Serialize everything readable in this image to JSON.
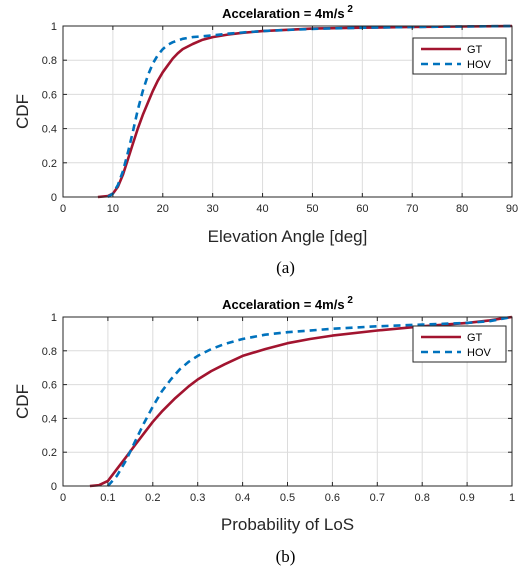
{
  "chart_data": [
    {
      "type": "line",
      "title": "Accelaration = 4m/s",
      "title_superscript": "2",
      "xlabel": "Elevation Angle [deg]",
      "ylabel": "CDF",
      "caption": "(a)",
      "xlim": [
        0,
        90
      ],
      "ylim": [
        0,
        1
      ],
      "xticks": [
        "0",
        "10",
        "20",
        "30",
        "40",
        "50",
        "60",
        "70",
        "80",
        "90"
      ],
      "yticks": [
        "0",
        "0.2",
        "0.4",
        "0.6",
        "0.8",
        "1"
      ],
      "grid": true,
      "legend_position": "top-right",
      "series": [
        {
          "name": "GT",
          "color": "#a2142f",
          "style": "solid",
          "x": [
            7,
            9,
            10,
            11,
            12,
            13,
            14,
            15,
            16,
            17,
            18,
            19,
            20,
            21,
            22,
            23,
            24,
            26,
            28,
            30,
            33,
            36,
            40,
            45,
            50,
            60,
            70,
            80,
            90
          ],
          "y": [
            0,
            0.005,
            0.02,
            0.06,
            0.13,
            0.22,
            0.31,
            0.4,
            0.48,
            0.55,
            0.62,
            0.68,
            0.73,
            0.77,
            0.81,
            0.84,
            0.865,
            0.895,
            0.92,
            0.935,
            0.95,
            0.96,
            0.97,
            0.978,
            0.985,
            0.99,
            0.994,
            0.997,
            1.0
          ]
        },
        {
          "name": "HOV",
          "color": "#0072bd",
          "style": "dashed",
          "x": [
            9,
            10,
            11,
            12,
            13,
            14,
            15,
            16,
            17,
            18,
            19,
            20,
            21,
            22,
            24,
            26,
            28,
            30,
            33,
            36,
            40,
            45,
            50,
            60,
            70,
            80,
            90
          ],
          "y": [
            0,
            0.02,
            0.07,
            0.15,
            0.26,
            0.38,
            0.51,
            0.62,
            0.71,
            0.78,
            0.83,
            0.865,
            0.89,
            0.905,
            0.925,
            0.935,
            0.94,
            0.945,
            0.955,
            0.962,
            0.97,
            0.977,
            0.983,
            0.99,
            0.994,
            0.997,
            1.0
          ]
        }
      ]
    },
    {
      "type": "line",
      "title": "Accelaration = 4m/s",
      "title_superscript": "2",
      "xlabel": "Probability of LoS",
      "ylabel": "CDF",
      "caption": "(b)",
      "xlim": [
        0,
        1
      ],
      "ylim": [
        0,
        1
      ],
      "xticks": [
        "0",
        "0.1",
        "0.2",
        "0.3",
        "0.4",
        "0.5",
        "0.6",
        "0.7",
        "0.8",
        "0.9",
        "1"
      ],
      "yticks": [
        "0",
        "0.2",
        "0.4",
        "0.6",
        "0.8",
        "1"
      ],
      "grid": true,
      "legend_position": "top-right",
      "series": [
        {
          "name": "GT",
          "color": "#a2142f",
          "style": "solid",
          "x": [
            0.06,
            0.08,
            0.1,
            0.12,
            0.14,
            0.16,
            0.18,
            0.2,
            0.22,
            0.25,
            0.28,
            0.3,
            0.33,
            0.36,
            0.4,
            0.45,
            0.5,
            0.55,
            0.6,
            0.7,
            0.8,
            0.9,
            0.95,
            1.0
          ],
          "y": [
            0,
            0.005,
            0.03,
            0.1,
            0.17,
            0.24,
            0.31,
            0.38,
            0.44,
            0.52,
            0.59,
            0.63,
            0.68,
            0.72,
            0.77,
            0.81,
            0.845,
            0.87,
            0.89,
            0.92,
            0.945,
            0.965,
            0.98,
            1.0
          ]
        },
        {
          "name": "HOV",
          "color": "#0072bd",
          "style": "dashed",
          "x": [
            0.1,
            0.12,
            0.14,
            0.16,
            0.18,
            0.2,
            0.22,
            0.24,
            0.26,
            0.28,
            0.3,
            0.33,
            0.36,
            0.4,
            0.45,
            0.5,
            0.6,
            0.7,
            0.8,
            0.9,
            0.95,
            1.0
          ],
          "y": [
            0,
            0.06,
            0.15,
            0.26,
            0.37,
            0.47,
            0.56,
            0.63,
            0.69,
            0.735,
            0.77,
            0.81,
            0.84,
            0.87,
            0.895,
            0.91,
            0.93,
            0.945,
            0.955,
            0.965,
            0.975,
            1.0
          ]
        }
      ]
    }
  ]
}
